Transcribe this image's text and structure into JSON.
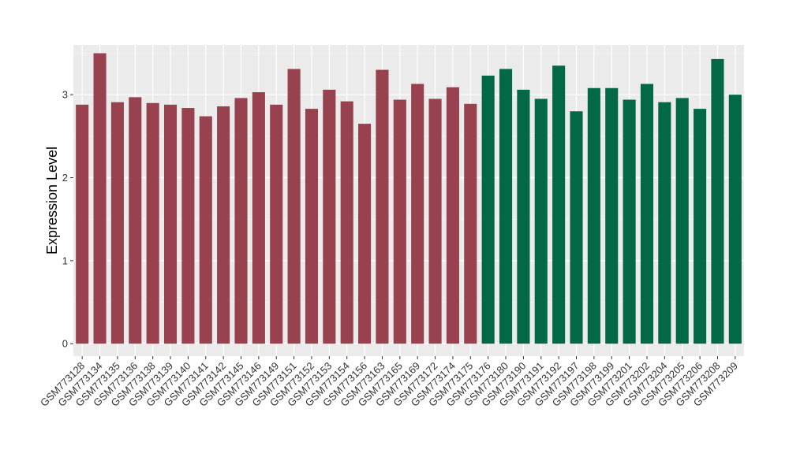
{
  "chart_data": {
    "type": "bar",
    "title": "",
    "xlabel": "",
    "ylabel": "Expression Level",
    "ylim": [
      -0.15,
      3.6
    ],
    "yticks": [
      0,
      1,
      2,
      3
    ],
    "grid": true,
    "legend": "none",
    "colors": {
      "panel": "#ebebeb",
      "grid_major": "#ffffff",
      "grid_minor": "#f5f5f5",
      "group1": "#984250",
      "group2": "#036846"
    },
    "categories": [
      "GSM773128",
      "GSM773134",
      "GSM773135",
      "GSM773136",
      "GSM773138",
      "GSM773139",
      "GSM773140",
      "GSM773141",
      "GSM773142",
      "GSM773145",
      "GSM773146",
      "GSM773149",
      "GSM773151",
      "GSM773152",
      "GSM773153",
      "GSM773154",
      "GSM773156",
      "GSM773163",
      "GSM773165",
      "GSM773169",
      "GSM773172",
      "GSM773174",
      "GSM773175",
      "GSM773176",
      "GSM773180",
      "GSM773190",
      "GSM773191",
      "GSM773192",
      "GSM773197",
      "GSM773198",
      "GSM773199",
      "GSM773201",
      "GSM773202",
      "GSM773204",
      "GSM773205",
      "GSM773206",
      "GSM773208",
      "GSM773209"
    ],
    "values": [
      2.88,
      3.5,
      2.91,
      2.97,
      2.9,
      2.88,
      2.84,
      2.74,
      2.86,
      2.96,
      3.03,
      2.88,
      3.31,
      2.83,
      3.06,
      2.92,
      2.65,
      3.3,
      2.94,
      3.13,
      2.95,
      3.09,
      2.89,
      3.23,
      3.31,
      3.06,
      2.95,
      3.35,
      2.8,
      3.08,
      3.08,
      2.94,
      3.13,
      2.91,
      2.96,
      2.83,
      3.43,
      3.0
    ],
    "groups": [
      1,
      1,
      1,
      1,
      1,
      1,
      1,
      1,
      1,
      1,
      1,
      1,
      1,
      1,
      1,
      1,
      1,
      1,
      1,
      1,
      1,
      1,
      1,
      2,
      2,
      2,
      2,
      2,
      2,
      2,
      2,
      2,
      2,
      2,
      2,
      2,
      2,
      2
    ]
  }
}
